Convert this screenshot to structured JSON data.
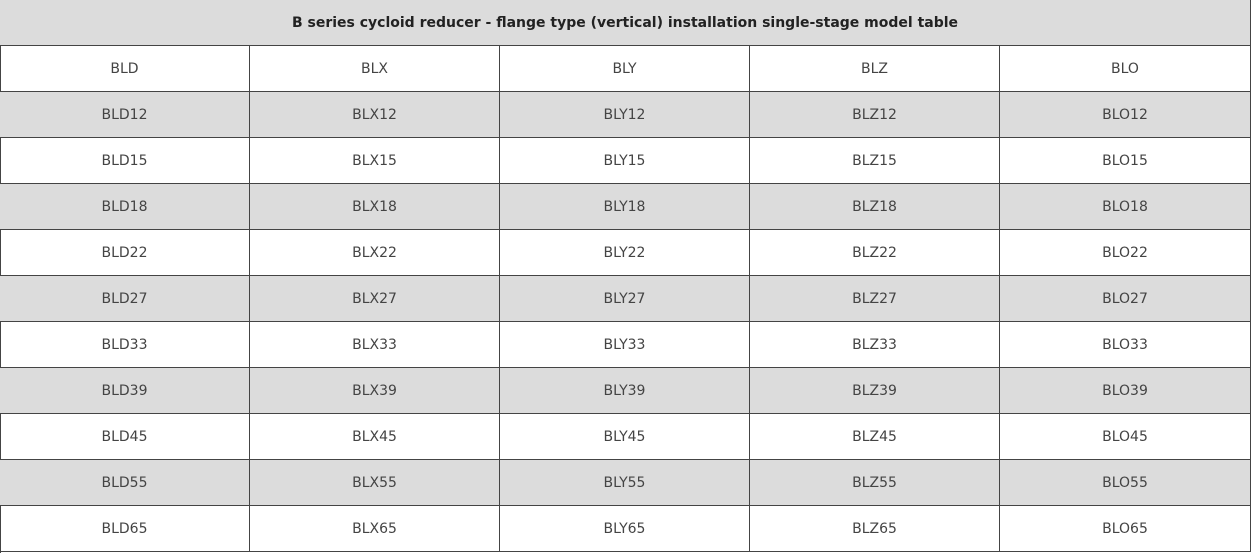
{
  "table": {
    "title": "B series cycloid reducer - flange type (vertical) installation single-stage model table",
    "header": [
      "BLD",
      "BLX",
      "BLY",
      "BLZ",
      "BLO"
    ],
    "rows": [
      [
        "BLD12",
        "BLX12",
        "BLY12",
        "BLZ12",
        "BLO12"
      ],
      [
        "BLD15",
        "BLX15",
        "BLY15",
        "BLZ15",
        "BLO15"
      ],
      [
        "BLD18",
        "BLX18",
        "BLY18",
        "BLZ18",
        "BLO18"
      ],
      [
        "BLD22",
        "BLX22",
        "BLY22",
        "BLZ22",
        "BLO22"
      ],
      [
        "BLD27",
        "BLX27",
        "BLY27",
        "BLZ27",
        "BLO27"
      ],
      [
        "BLD33",
        "BLX33",
        "BLY33",
        "BLZ33",
        "BLO33"
      ],
      [
        "BLD39",
        "BLX39",
        "BLY39",
        "BLZ39",
        "BLO39"
      ],
      [
        "BLD45",
        "BLX45",
        "BLY45",
        "BLZ45",
        "BLO45"
      ],
      [
        "BLD55",
        "BLX55",
        "BLY55",
        "BLZ55",
        "BLO55"
      ],
      [
        "BLD65",
        "BLX65",
        "BLY65",
        "BLZ65",
        "BLO65"
      ]
    ]
  }
}
